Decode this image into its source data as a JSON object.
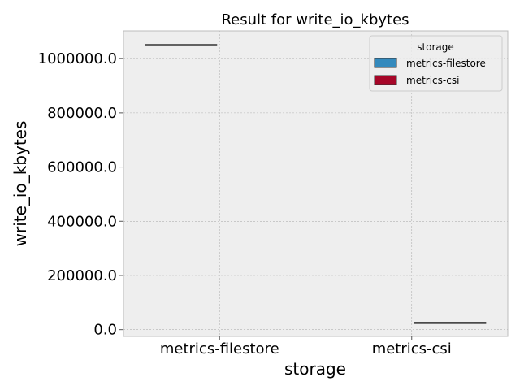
{
  "chart_data": {
    "type": "box",
    "title": "Result for write_io_kbytes",
    "xlabel": "storage",
    "ylabel": "write_io_kbytes",
    "categories": [
      "metrics-filestore",
      "metrics-csi"
    ],
    "series": [
      {
        "name": "metrics-filestore",
        "color": "#348ABD",
        "values": [
          1050000,
          null
        ]
      },
      {
        "name": "metrics-csi",
        "color": "#A60628",
        "values": [
          null,
          25000
        ]
      }
    ],
    "yticks": [
      "0.0",
      "200000.0",
      "400000.0",
      "600000.0",
      "800000.0",
      "1000000.0"
    ],
    "ytick_values": [
      0,
      200000,
      400000,
      600000,
      800000,
      1000000
    ],
    "ylim": [
      -25000,
      1102500
    ],
    "grid": true,
    "legend": {
      "title": "storage",
      "position": "top-right",
      "entries": [
        "metrics-filestore",
        "metrics-csi"
      ]
    }
  }
}
